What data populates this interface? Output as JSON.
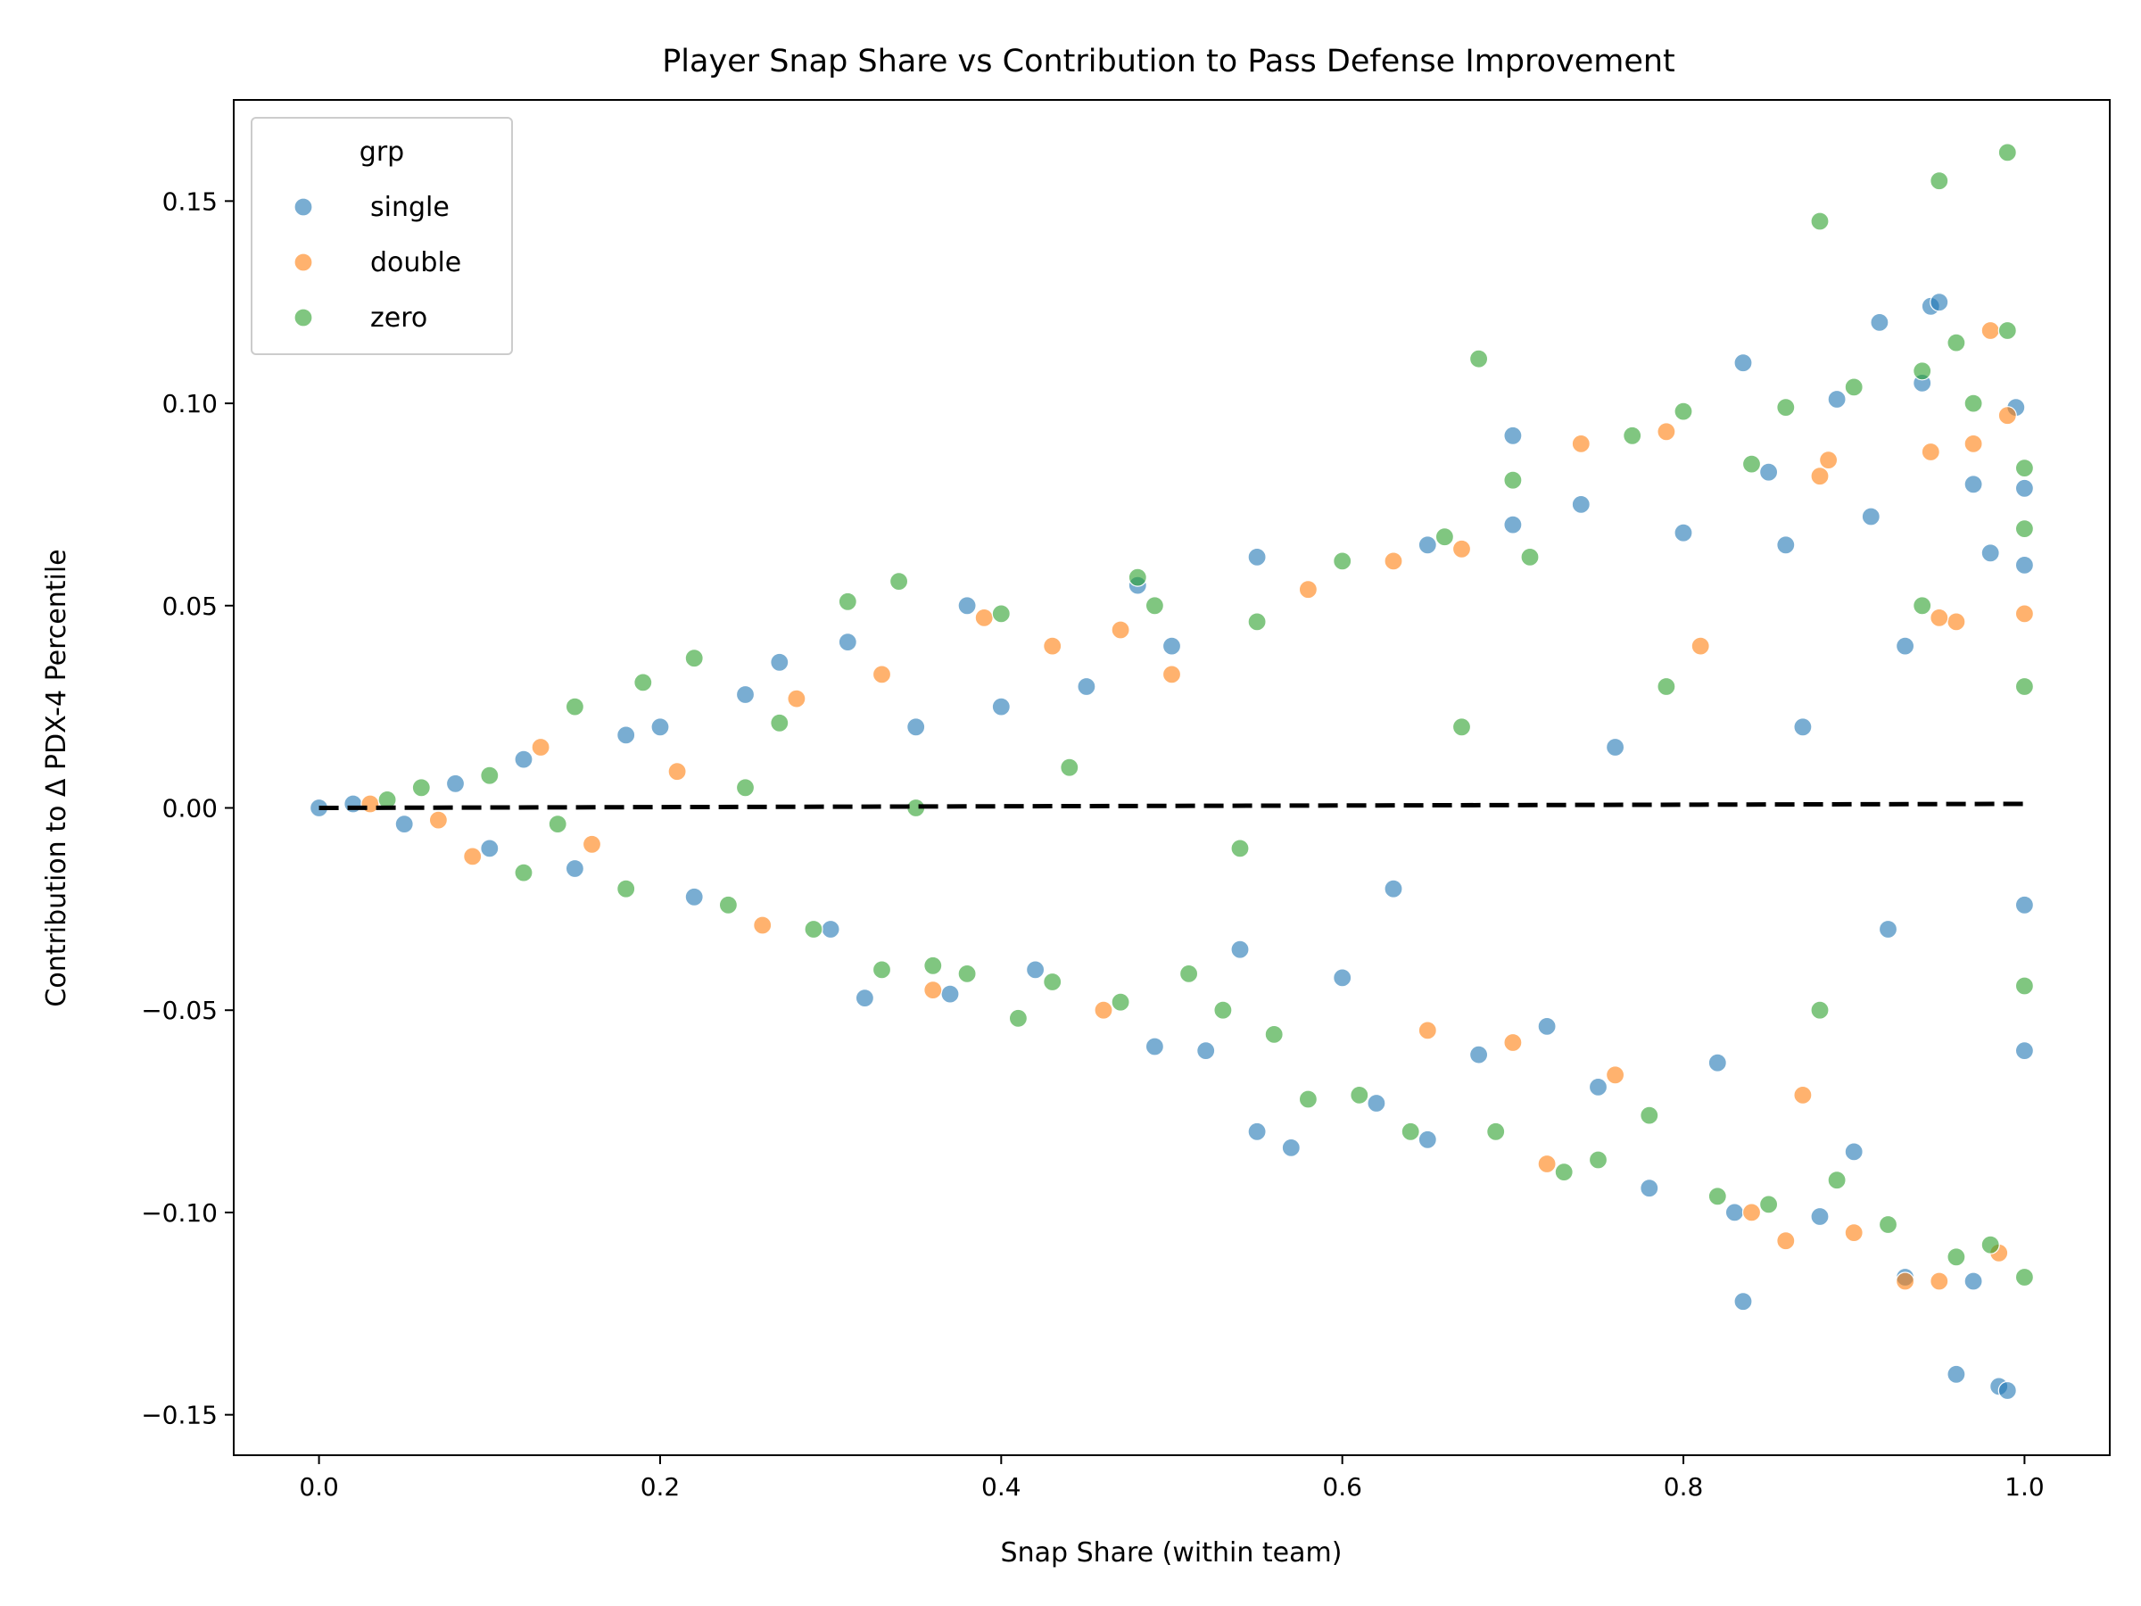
{
  "chart_data": {
    "type": "scatter",
    "title": "Player Snap Share vs Contribution to Pass Defense Improvement",
    "xlabel": "Snap Share (within team)",
    "ylabel": "Contribution to Δ PDX-4 Percentile",
    "xlim": [
      -0.05,
      1.05
    ],
    "ylim": [
      -0.16,
      0.175
    ],
    "x_ticks": [
      0.0,
      0.2,
      0.4,
      0.6,
      0.8,
      1.0
    ],
    "x_tick_labels": [
      "0.0",
      "0.2",
      "0.4",
      "0.6",
      "0.8",
      "1.0"
    ],
    "y_ticks": [
      -0.15,
      -0.1,
      -0.05,
      0.0,
      0.05,
      0.1,
      0.15
    ],
    "y_tick_labels": [
      "−0.15",
      "−0.10",
      "−0.05",
      "0.00",
      "0.05",
      "0.10",
      "0.15"
    ],
    "grid": false,
    "legend": {
      "title": "grp",
      "placement": "top-left",
      "entries": [
        "single",
        "double",
        "zero"
      ]
    },
    "reference_line": {
      "style": "dashed",
      "color": "#000000",
      "x": [
        0.0,
        1.0
      ],
      "y": [
        0.0,
        0.001
      ]
    },
    "series": [
      {
        "name": "single",
        "color": "#1f77b4",
        "points": [
          [
            0.0,
            0.0
          ],
          [
            0.02,
            0.001
          ],
          [
            0.05,
            -0.004
          ],
          [
            0.08,
            0.006
          ],
          [
            0.1,
            -0.01
          ],
          [
            0.12,
            0.012
          ],
          [
            0.15,
            -0.015
          ],
          [
            0.18,
            0.018
          ],
          [
            0.2,
            0.02
          ],
          [
            0.22,
            -0.022
          ],
          [
            0.25,
            0.028
          ],
          [
            0.27,
            0.036
          ],
          [
            0.3,
            -0.03
          ],
          [
            0.31,
            0.041
          ],
          [
            0.32,
            -0.047
          ],
          [
            0.35,
            0.02
          ],
          [
            0.37,
            -0.046
          ],
          [
            0.38,
            0.05
          ],
          [
            0.4,
            0.025
          ],
          [
            0.42,
            -0.04
          ],
          [
            0.45,
            0.03
          ],
          [
            0.48,
            0.055
          ],
          [
            0.49,
            -0.059
          ],
          [
            0.5,
            0.04
          ],
          [
            0.52,
            -0.06
          ],
          [
            0.54,
            -0.035
          ],
          [
            0.55,
            0.062
          ],
          [
            0.55,
            -0.08
          ],
          [
            0.57,
            -0.084
          ],
          [
            0.6,
            -0.042
          ],
          [
            0.62,
            -0.073
          ],
          [
            0.65,
            0.065
          ],
          [
            0.65,
            -0.082
          ],
          [
            0.68,
            -0.061
          ],
          [
            0.7,
            0.092
          ],
          [
            0.7,
            0.07
          ],
          [
            0.72,
            -0.054
          ],
          [
            0.74,
            0.075
          ],
          [
            0.75,
            -0.069
          ],
          [
            0.78,
            -0.094
          ],
          [
            0.8,
            0.068
          ],
          [
            0.82,
            -0.063
          ],
          [
            0.83,
            -0.1
          ],
          [
            0.835,
            0.11
          ],
          [
            0.835,
            -0.122
          ],
          [
            0.85,
            0.083
          ],
          [
            0.86,
            0.065
          ],
          [
            0.88,
            -0.101
          ],
          [
            0.89,
            0.101
          ],
          [
            0.9,
            -0.085
          ],
          [
            0.91,
            0.072
          ],
          [
            0.915,
            0.12
          ],
          [
            0.93,
            -0.116
          ],
          [
            0.94,
            0.105
          ],
          [
            0.945,
            0.124
          ],
          [
            0.95,
            0.125
          ],
          [
            0.96,
            -0.14
          ],
          [
            0.97,
            0.08
          ],
          [
            0.98,
            0.063
          ],
          [
            0.985,
            -0.143
          ],
          [
            0.99,
            -0.144
          ],
          [
            0.995,
            0.099
          ],
          [
            1.0,
            0.079
          ],
          [
            1.0,
            -0.06
          ],
          [
            1.0,
            0.06
          ],
          [
            1.0,
            -0.024
          ],
          [
            0.97,
            -0.117
          ],
          [
            0.93,
            0.04
          ],
          [
            0.92,
            -0.03
          ],
          [
            0.87,
            0.02
          ],
          [
            0.76,
            0.015
          ],
          [
            0.63,
            -0.02
          ]
        ]
      },
      {
        "name": "double",
        "color": "#ff7f0e",
        "points": [
          [
            0.03,
            0.001
          ],
          [
            0.07,
            -0.003
          ],
          [
            0.09,
            -0.012
          ],
          [
            0.13,
            0.015
          ],
          [
            0.16,
            -0.009
          ],
          [
            0.21,
            0.009
          ],
          [
            0.26,
            -0.029
          ],
          [
            0.28,
            0.027
          ],
          [
            0.33,
            0.033
          ],
          [
            0.36,
            -0.045
          ],
          [
            0.39,
            0.047
          ],
          [
            0.43,
            0.04
          ],
          [
            0.46,
            -0.05
          ],
          [
            0.47,
            0.044
          ],
          [
            0.5,
            0.033
          ],
          [
            0.58,
            0.054
          ],
          [
            0.63,
            0.061
          ],
          [
            0.65,
            -0.055
          ],
          [
            0.67,
            0.064
          ],
          [
            0.7,
            -0.058
          ],
          [
            0.72,
            -0.088
          ],
          [
            0.74,
            0.09
          ],
          [
            0.76,
            -0.066
          ],
          [
            0.79,
            0.093
          ],
          [
            0.81,
            0.04
          ],
          [
            0.84,
            -0.1
          ],
          [
            0.86,
            -0.107
          ],
          [
            0.87,
            -0.071
          ],
          [
            0.88,
            0.082
          ],
          [
            0.885,
            0.086
          ],
          [
            0.9,
            -0.105
          ],
          [
            0.93,
            -0.117
          ],
          [
            0.945,
            0.088
          ],
          [
            0.95,
            -0.117
          ],
          [
            0.96,
            0.046
          ],
          [
            0.97,
            0.09
          ],
          [
            0.98,
            0.118
          ],
          [
            0.985,
            -0.11
          ],
          [
            0.99,
            0.097
          ],
          [
            1.0,
            0.048
          ],
          [
            0.95,
            0.047
          ]
        ]
      },
      {
        "name": "zero",
        "color": "#2ca02c",
        "points": [
          [
            0.04,
            0.002
          ],
          [
            0.06,
            0.005
          ],
          [
            0.1,
            0.008
          ],
          [
            0.12,
            -0.016
          ],
          [
            0.15,
            0.025
          ],
          [
            0.18,
            -0.02
          ],
          [
            0.19,
            0.031
          ],
          [
            0.22,
            0.037
          ],
          [
            0.24,
            -0.024
          ],
          [
            0.27,
            0.021
          ],
          [
            0.29,
            -0.03
          ],
          [
            0.31,
            0.051
          ],
          [
            0.33,
            -0.04
          ],
          [
            0.34,
            0.056
          ],
          [
            0.36,
            -0.039
          ],
          [
            0.38,
            -0.041
          ],
          [
            0.4,
            0.048
          ],
          [
            0.41,
            -0.052
          ],
          [
            0.43,
            -0.043
          ],
          [
            0.47,
            -0.048
          ],
          [
            0.48,
            0.057
          ],
          [
            0.49,
            0.05
          ],
          [
            0.51,
            -0.041
          ],
          [
            0.53,
            -0.05
          ],
          [
            0.55,
            0.046
          ],
          [
            0.56,
            -0.056
          ],
          [
            0.58,
            -0.072
          ],
          [
            0.6,
            0.061
          ],
          [
            0.61,
            -0.071
          ],
          [
            0.64,
            -0.08
          ],
          [
            0.66,
            0.067
          ],
          [
            0.68,
            0.111
          ],
          [
            0.69,
            -0.08
          ],
          [
            0.7,
            0.081
          ],
          [
            0.71,
            0.062
          ],
          [
            0.73,
            -0.09
          ],
          [
            0.75,
            -0.087
          ],
          [
            0.77,
            0.092
          ],
          [
            0.78,
            -0.076
          ],
          [
            0.8,
            0.098
          ],
          [
            0.82,
            -0.096
          ],
          [
            0.84,
            0.085
          ],
          [
            0.85,
            -0.098
          ],
          [
            0.86,
            0.099
          ],
          [
            0.88,
            0.145
          ],
          [
            0.89,
            -0.092
          ],
          [
            0.9,
            0.104
          ],
          [
            0.92,
            -0.103
          ],
          [
            0.94,
            0.108
          ],
          [
            0.95,
            0.155
          ],
          [
            0.96,
            -0.111
          ],
          [
            0.96,
            0.115
          ],
          [
            0.97,
            0.1
          ],
          [
            0.98,
            -0.108
          ],
          [
            0.99,
            0.162
          ],
          [
            0.99,
            0.118
          ],
          [
            1.0,
            -0.116
          ],
          [
            1.0,
            0.069
          ],
          [
            1.0,
            -0.044
          ],
          [
            1.0,
            0.03
          ],
          [
            1.0,
            0.084
          ],
          [
            0.94,
            0.05
          ],
          [
            0.88,
            -0.05
          ],
          [
            0.79,
            0.03
          ],
          [
            0.67,
            0.02
          ],
          [
            0.54,
            -0.01
          ],
          [
            0.44,
            0.01
          ],
          [
            0.35,
            0.0
          ],
          [
            0.25,
            0.005
          ],
          [
            0.14,
            -0.004
          ]
        ]
      }
    ]
  }
}
